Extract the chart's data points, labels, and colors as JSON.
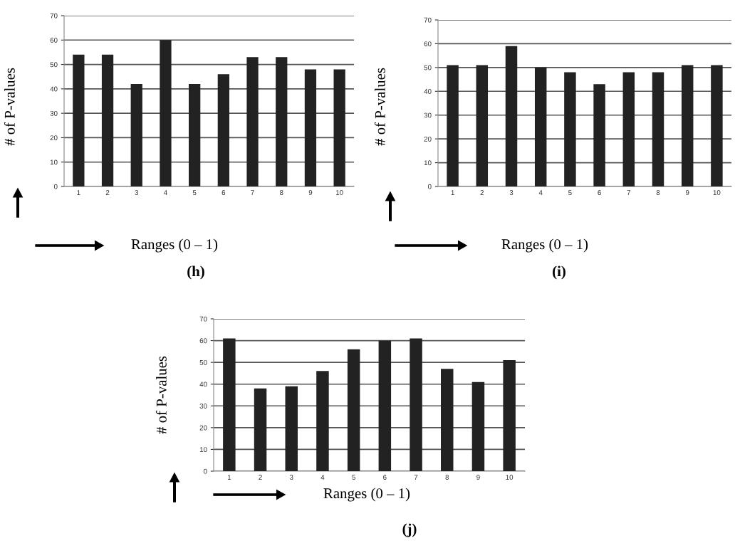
{
  "chart_data": [
    {
      "type": "bar",
      "categories": [
        "1",
        "2",
        "3",
        "4",
        "5",
        "6",
        "7",
        "8",
        "9",
        "10"
      ],
      "values": [
        54,
        54,
        42,
        60,
        42,
        46,
        53,
        53,
        48,
        48
      ],
      "color": "#222222",
      "ylabel": "# of P-values",
      "xlabel": "Ranges (0 – 1)",
      "annotations": [
        "(h)"
      ],
      "ylim": [
        0,
        70
      ],
      "yticks": [
        0,
        10,
        20,
        30,
        40,
        50,
        60,
        70
      ],
      "grid": "y"
    },
    {
      "type": "bar",
      "categories": [
        "1",
        "2",
        "3",
        "4",
        "5",
        "6",
        "7",
        "8",
        "9",
        "10"
      ],
      "values": [
        51,
        51,
        59,
        50,
        48,
        43,
        48,
        48,
        51,
        51
      ],
      "color": "#222222",
      "ylabel": "# of P-values",
      "xlabel": "Ranges (0 – 1)",
      "annotations": [
        "(i)"
      ],
      "ylim": [
        0,
        70
      ],
      "yticks": [
        0,
        10,
        20,
        30,
        40,
        50,
        60,
        70
      ],
      "grid": "y"
    },
    {
      "type": "bar",
      "categories": [
        "1",
        "2",
        "3",
        "4",
        "5",
        "6",
        "7",
        "8",
        "9",
        "10"
      ],
      "values": [
        61,
        38,
        39,
        46,
        56,
        60,
        61,
        47,
        41,
        51
      ],
      "color": "#222222",
      "ylabel": "# of P-values",
      "xlabel": "Ranges (0 – 1)",
      "annotations": [
        "(j)"
      ],
      "ylim": [
        0,
        70
      ],
      "yticks": [
        0,
        10,
        20,
        30,
        40,
        50,
        60,
        70
      ],
      "grid": "y"
    }
  ]
}
